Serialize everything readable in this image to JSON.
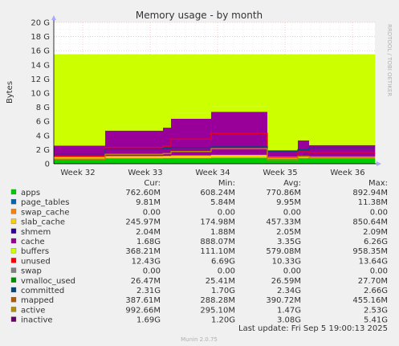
{
  "chart_data": {
    "type": "area",
    "title": "Memory usage - by month",
    "ylabel": "Bytes",
    "side_label": "RRDTOOL / TOBI OETIKER",
    "footer": "Munin 2.0.75",
    "last_update": "Last update: Fri Sep  5 19:00:13 2025",
    "ylim": [
      0,
      20
    ],
    "y_unit": "G",
    "y_ticks": [
      "0",
      "2 G",
      "4 G",
      "6 G",
      "8 G",
      "10 G",
      "12 G",
      "14 G",
      "16 G",
      "18 G",
      "20 G"
    ],
    "x_ticks": [
      "Week 32",
      "Week 33",
      "Week 34",
      "Week 35",
      "Week 36"
    ],
    "grid": true,
    "legend_headers": [
      "Cur:",
      "Min:",
      "Avg:",
      "Max:"
    ],
    "total_memory_gb": 15.5,
    "segments": [
      {
        "x0": 0.0,
        "x1": 16.0,
        "apps": 0.76,
        "page_tables": 0.01,
        "slab": 0.2,
        "cache": 1.6,
        "buffers": 0.4,
        "committed": 1.4,
        "active": 0.6,
        "inactive": 1.1,
        "vmalloc": 0.03
      },
      {
        "x0": 16.0,
        "x1": 34.0,
        "apps": 0.78,
        "page_tables": 0.01,
        "slab": 0.3,
        "cache": 3.6,
        "buffers": 0.7,
        "committed": 2.1,
        "active": 1.3,
        "inactive": 2.3,
        "vmalloc": 0.03
      },
      {
        "x0": 34.0,
        "x1": 36.5,
        "apps": 0.8,
        "page_tables": 0.01,
        "slab": 0.3,
        "cache": 4.0,
        "buffers": 0.8,
        "committed": 2.2,
        "active": 1.4,
        "inactive": 2.5,
        "vmalloc": 0.03
      },
      {
        "x0": 36.5,
        "x1": 49.0,
        "apps": 0.82,
        "page_tables": 0.01,
        "slab": 0.35,
        "cache": 5.2,
        "buffers": 0.8,
        "committed": 2.3,
        "active": 1.7,
        "inactive": 3.5,
        "vmalloc": 0.03
      },
      {
        "x0": 49.0,
        "x1": 66.5,
        "apps": 0.85,
        "page_tables": 0.01,
        "slab": 0.4,
        "cache": 6.1,
        "buffers": 0.8,
        "committed": 2.4,
        "active": 2.1,
        "inactive": 4.3,
        "vmalloc": 0.03
      },
      {
        "x0": 66.5,
        "x1": 76.0,
        "apps": 0.75,
        "page_tables": 0.01,
        "slab": 0.25,
        "cache": 0.9,
        "buffers": 0.3,
        "committed": 1.8,
        "active": 0.5,
        "inactive": 0.9,
        "vmalloc": 0.03
      },
      {
        "x0": 76.0,
        "x1": 79.5,
        "apps": 0.8,
        "page_tables": 0.01,
        "slab": 0.3,
        "cache": 2.2,
        "buffers": 0.4,
        "committed": 2.0,
        "active": 1.0,
        "inactive": 1.7,
        "vmalloc": 0.03
      },
      {
        "x0": 79.5,
        "x1": 100.0,
        "apps": 0.78,
        "page_tables": 0.01,
        "slab": 0.25,
        "cache": 1.6,
        "buffers": 0.4,
        "committed": 2.3,
        "active": 0.9,
        "inactive": 1.6,
        "vmalloc": 0.03
      }
    ],
    "series": [
      {
        "name": "apps",
        "color": "#00cc00",
        "cur": "762.60M",
        "min": "608.24M",
        "avg": "770.86M",
        "max": "892.94M"
      },
      {
        "name": "page_tables",
        "color": "#0066b3",
        "cur": "9.81M",
        "min": "5.84M",
        "avg": "9.95M",
        "max": "11.38M"
      },
      {
        "name": "swap_cache",
        "color": "#ff8000",
        "cur": "0.00",
        "min": "0.00",
        "avg": "0.00",
        "max": "0.00"
      },
      {
        "name": "slab_cache",
        "color": "#ffcc00",
        "cur": "245.97M",
        "min": "174.98M",
        "avg": "457.33M",
        "max": "850.64M"
      },
      {
        "name": "shmem",
        "color": "#330099",
        "cur": "2.04M",
        "min": "1.88M",
        "avg": "2.05M",
        "max": "2.09M"
      },
      {
        "name": "cache",
        "color": "#990099",
        "cur": "1.68G",
        "min": "888.07M",
        "avg": "3.35G",
        "max": "6.26G"
      },
      {
        "name": "buffers",
        "color": "#ccff00",
        "cur": "368.21M",
        "min": "111.10M",
        "avg": "579.08M",
        "max": "958.35M"
      },
      {
        "name": "unused",
        "color": "#ff0000",
        "cur": "12.43G",
        "min": "6.69G",
        "avg": "10.33G",
        "max": "13.64G"
      },
      {
        "name": "swap",
        "color": "#808080",
        "cur": "0.00",
        "min": "0.00",
        "avg": "0.00",
        "max": "0.00"
      },
      {
        "name": "vmalloc_used",
        "color": "#008f00",
        "cur": "26.47M",
        "min": "25.41M",
        "avg": "26.59M",
        "max": "27.70M"
      },
      {
        "name": "committed",
        "color": "#00487d",
        "cur": "2.31G",
        "min": "1.70G",
        "avg": "2.34G",
        "max": "2.66G"
      },
      {
        "name": "mapped",
        "color": "#b35a00",
        "cur": "387.61M",
        "min": "288.28M",
        "avg": "390.72M",
        "max": "455.16M"
      },
      {
        "name": "active",
        "color": "#b38f00",
        "cur": "992.66M",
        "min": "295.10M",
        "avg": "1.47G",
        "max": "2.53G"
      },
      {
        "name": "inactive",
        "color": "#6b006b",
        "cur": "1.69G",
        "min": "1.20G",
        "avg": "3.08G",
        "max": "5.41G"
      }
    ]
  }
}
